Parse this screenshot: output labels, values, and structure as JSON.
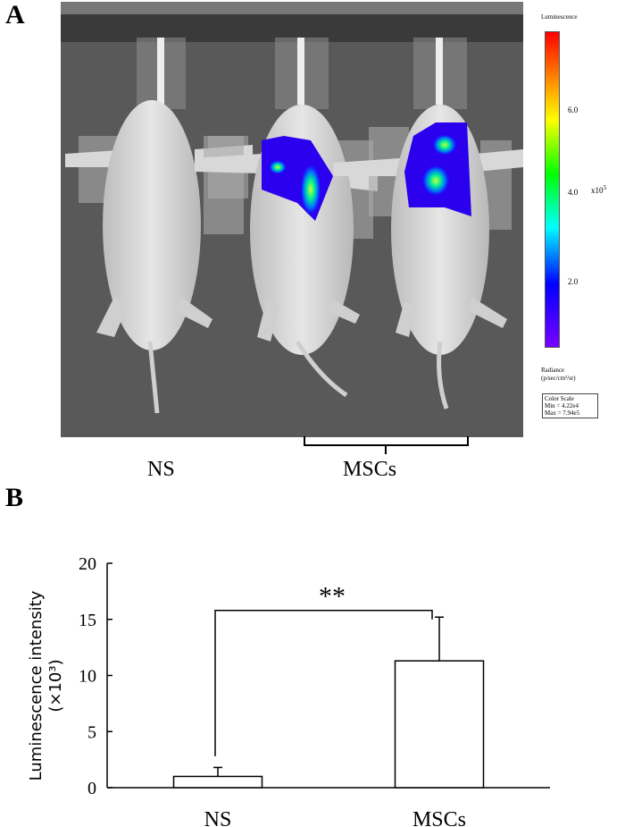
{
  "panel_a": {
    "label": "A",
    "groups": {
      "ns": "NS",
      "mscs": "MSCs"
    },
    "color_scale": {
      "title": "Luminescence",
      "ticks": [
        "6.0",
        "4.0",
        "2.0"
      ],
      "multiplier": "x10",
      "multiplier_exp": "5",
      "units_line1": "Radiance",
      "units_line2": "(p/sec/cm²/sr)",
      "box_title": "Color Scale",
      "min": "Min = 4.22e4",
      "max": "Max = 7.94e5",
      "colors": [
        "#7a00ff",
        "#0000ff",
        "#00ffff",
        "#00ff00",
        "#ffff00",
        "#ff8000",
        "#ff0000"
      ]
    }
  },
  "panel_b": {
    "label": "B"
  },
  "chart_data": {
    "type": "bar",
    "categories": [
      "NS",
      "MSCs"
    ],
    "values": [
      1.0,
      11.3
    ],
    "error_upper": [
      1.8,
      15.2
    ],
    "ylabel_line1": "Luminescence intensity",
    "ylabel_line2": "(×10³)",
    "ylim": [
      0,
      20
    ],
    "yticks": [
      "0",
      "5",
      "10",
      "15",
      "20"
    ],
    "significance": "**",
    "bar_fill": "#ffffff",
    "grid": false
  }
}
